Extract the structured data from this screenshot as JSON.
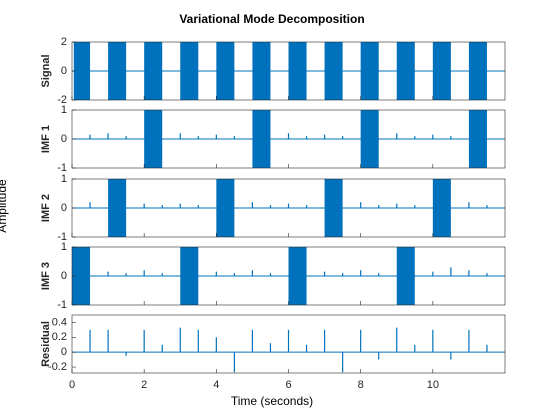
{
  "figure": {
    "title": "Variational Mode Decomposition",
    "xlabel": "Time (seconds)",
    "ylabel": "Amplitude"
  },
  "chart_data": [
    {
      "type": "burst",
      "ylabel": "Signal",
      "color": "#0072bd",
      "xlim": [
        0,
        12
      ],
      "ylim": [
        -2,
        2
      ],
      "yticks": [
        -2,
        0,
        2
      ],
      "bursts": [
        {
          "start": 0.05,
          "end": 0.5,
          "amplitude": 2
        },
        {
          "start": 1.0,
          "end": 1.5,
          "amplitude": 2
        },
        {
          "start": 2.0,
          "end": 2.5,
          "amplitude": 2
        },
        {
          "start": 3.0,
          "end": 3.5,
          "amplitude": 2
        },
        {
          "start": 4.0,
          "end": 4.5,
          "amplitude": 2
        },
        {
          "start": 5.0,
          "end": 5.5,
          "amplitude": 2
        },
        {
          "start": 6.0,
          "end": 6.5,
          "amplitude": 2
        },
        {
          "start": 7.0,
          "end": 7.5,
          "amplitude": 2
        },
        {
          "start": 8.0,
          "end": 8.5,
          "amplitude": 2
        },
        {
          "start": 9.0,
          "end": 9.5,
          "amplitude": 2
        },
        {
          "start": 10.0,
          "end": 10.5,
          "amplitude": 2
        },
        {
          "start": 11.0,
          "end": 11.5,
          "amplitude": 2
        }
      ]
    },
    {
      "type": "burst",
      "ylabel": "IMF 1",
      "color": "#0072bd",
      "xlim": [
        0,
        12
      ],
      "ylim": [
        -1,
        1
      ],
      "yticks": [
        -1,
        0,
        1
      ],
      "bursts": [
        {
          "start": 2.0,
          "end": 2.5,
          "amplitude": 1
        },
        {
          "start": 5.0,
          "end": 5.5,
          "amplitude": 1
        },
        {
          "start": 8.0,
          "end": 8.5,
          "amplitude": 1
        },
        {
          "start": 11.0,
          "end": 11.5,
          "amplitude": 1
        }
      ],
      "spikes": {
        "x": [
          0.5,
          1.0,
          1.5,
          3.0,
          3.5,
          4.0,
          4.5,
          6.0,
          6.5,
          7.0,
          7.5,
          9.0,
          9.5,
          10.0,
          10.5
        ],
        "values": [
          0.15,
          0.2,
          0.1,
          0.2,
          0.1,
          0.15,
          0.1,
          0.2,
          0.1,
          0.15,
          0.1,
          0.2,
          0.1,
          0.15,
          0.1
        ]
      }
    },
    {
      "type": "burst",
      "ylabel": "IMF 2",
      "color": "#0072bd",
      "xlim": [
        0,
        12
      ],
      "ylim": [
        -1,
        1
      ],
      "yticks": [
        -1,
        0,
        1
      ],
      "bursts": [
        {
          "start": 1.0,
          "end": 1.5,
          "amplitude": 1
        },
        {
          "start": 4.0,
          "end": 4.5,
          "amplitude": 1
        },
        {
          "start": 7.0,
          "end": 7.5,
          "amplitude": 1
        },
        {
          "start": 10.0,
          "end": 10.5,
          "amplitude": 1
        }
      ],
      "spikes": {
        "x": [
          0.5,
          2.0,
          2.5,
          3.0,
          3.5,
          5.0,
          5.5,
          6.0,
          6.5,
          8.0,
          8.5,
          9.0,
          9.5,
          11.0,
          11.5
        ],
        "values": [
          0.2,
          0.15,
          0.1,
          0.15,
          0.1,
          0.2,
          0.1,
          0.15,
          0.1,
          0.2,
          0.1,
          0.15,
          0.1,
          0.2,
          0.1
        ]
      }
    },
    {
      "type": "burst",
      "ylabel": "IMF 3",
      "color": "#0072bd",
      "xlim": [
        0,
        12
      ],
      "ylim": [
        -1,
        1
      ],
      "yticks": [
        -1,
        0,
        1
      ],
      "bursts": [
        {
          "start": 0.0,
          "end": 0.5,
          "amplitude": 1
        },
        {
          "start": 3.0,
          "end": 3.5,
          "amplitude": 1
        },
        {
          "start": 6.0,
          "end": 6.5,
          "amplitude": 1
        },
        {
          "start": 9.0,
          "end": 9.5,
          "amplitude": 1
        }
      ],
      "spikes": {
        "x": [
          1.0,
          1.5,
          2.0,
          2.5,
          4.0,
          4.5,
          5.0,
          5.5,
          7.0,
          7.5,
          8.0,
          8.5,
          10.0,
          10.5,
          11.0,
          11.5
        ],
        "values": [
          0.15,
          0.1,
          0.2,
          0.1,
          0.15,
          0.1,
          0.2,
          0.1,
          0.15,
          0.1,
          0.2,
          0.1,
          0.15,
          0.3,
          0.2,
          0.1
        ]
      }
    },
    {
      "type": "spike",
      "ylabel": "Residual",
      "color": "#0072bd",
      "xlim": [
        0,
        12
      ],
      "ylim": [
        -0.28,
        0.5
      ],
      "yticks": [
        -0.2,
        0,
        0.2,
        0.4
      ],
      "xticks": [
        0,
        2,
        4,
        6,
        8,
        10
      ],
      "spikes": {
        "x": [
          0.5,
          1.0,
          1.5,
          2.0,
          2.5,
          3.0,
          3.5,
          4.0,
          4.5,
          5.0,
          5.5,
          6.0,
          6.5,
          7.0,
          7.5,
          8.0,
          8.5,
          9.0,
          9.5,
          10.0,
          10.5,
          11.0,
          11.5
        ],
        "values": [
          0.3,
          0.3,
          -0.05,
          0.3,
          0.1,
          0.33,
          0.3,
          0.2,
          -0.27,
          0.3,
          0.12,
          0.3,
          0.1,
          0.3,
          -0.27,
          0.3,
          -0.1,
          0.33,
          0.1,
          0.3,
          -0.1,
          0.3,
          0.1
        ]
      }
    }
  ]
}
